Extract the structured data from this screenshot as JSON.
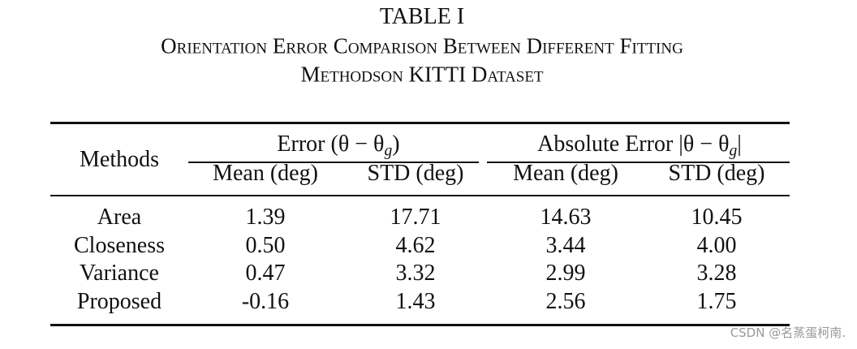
{
  "table": {
    "label": "TABLE I",
    "caption_lines": [
      "Orientation Error Comparison Between Different Fitting",
      "Methodson KITTI Dataset"
    ],
    "row_header": "Methods",
    "group_headers": [
      {
        "prefix": "Error (θ − θ",
        "subscript": "g",
        "suffix": ")"
      },
      {
        "prefix": "Absolute Error |θ − θ",
        "subscript": "g",
        "suffix": "|"
      }
    ],
    "columns": [
      "Mean (deg)",
      "STD (deg)",
      "Mean (deg)",
      "STD (deg)"
    ],
    "rows": [
      [
        "Area",
        "1.39",
        "17.71",
        "14.63",
        "10.45"
      ],
      [
        "Closeness",
        "0.50",
        "4.62",
        "3.44",
        "4.00"
      ],
      [
        "Variance",
        "0.47",
        "3.32",
        "2.99",
        "3.28"
      ],
      [
        "Proposed",
        "-0.16",
        "1.43",
        "2.56",
        "1.75"
      ]
    ]
  },
  "watermark": "CSDN @名蒸蛋柯南."
}
